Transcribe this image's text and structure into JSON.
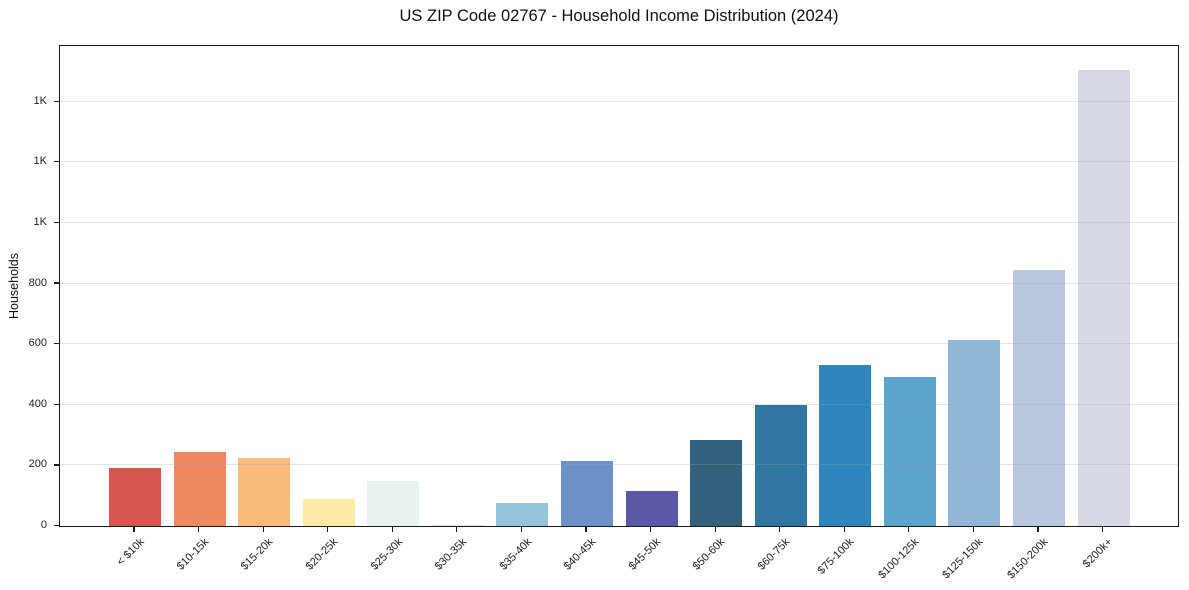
{
  "figure": {
    "title": "US ZIP Code 02767 - Household Income Distribution (2024)"
  },
  "chart_data": {
    "type": "bar",
    "title": "US ZIP Code 02767 - Household Income Distribution (2024)",
    "xlabel": "",
    "ylabel": "Households",
    "categories": [
      "< $10k",
      "$10-15k",
      "$15-20k",
      "$20-25k",
      "$25-30k",
      "$30-35k",
      "$35-40k",
      "$40-45k",
      "$45-50k",
      "$50-60k",
      "$60-75k",
      "$75-100k",
      "$100-125k",
      "$125-150k",
      "$150-200k",
      "$200k+"
    ],
    "values": [
      190,
      245,
      225,
      90,
      150,
      5,
      75,
      215,
      115,
      285,
      400,
      530,
      490,
      615,
      845,
      1505
    ],
    "bar_colors": [
      "#d4564e",
      "#f0895f",
      "#fbbb7a",
      "#fdeaa6",
      "#e8f2f1",
      "#d5e8e0",
      "#96c4dd",
      "#6c90c8",
      "#5b58a7",
      "#33607c",
      "#2f76a0",
      "#2e86bd",
      "#5ba4cb",
      "#90b7d7",
      "#b9c8de",
      "#d8d9e6"
    ],
    "ylim": [
      0,
      1580
    ],
    "yticks": [
      {
        "value": 0,
        "label": "0"
      },
      {
        "value": 200,
        "label": "200"
      },
      {
        "value": 400,
        "label": "400"
      },
      {
        "value": 600,
        "label": "600"
      },
      {
        "value": 800,
        "label": "800"
      },
      {
        "value": 1000,
        "label": "1K"
      },
      {
        "value": 1200,
        "label": "1K"
      },
      {
        "value": 1400,
        "label": "1K"
      }
    ],
    "grid": "horizontal",
    "legend_position": "none",
    "axis_color": "#1a1a1a",
    "grid_color": "#e9e9ea",
    "background": "#ffffff"
  }
}
